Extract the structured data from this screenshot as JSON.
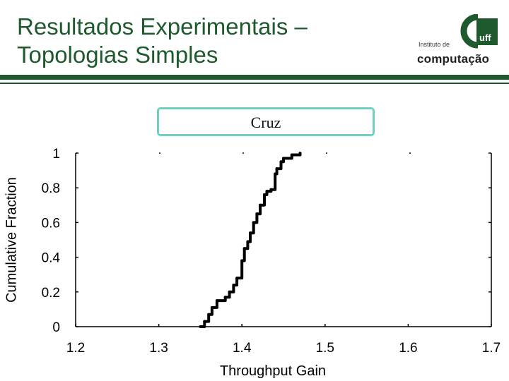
{
  "slide": {
    "title_line1": "Resultados Experimentais –",
    "title_line2": "Topologias Simples"
  },
  "logo": {
    "prefix": "Instituto de",
    "name": "computação",
    "mark": "uff"
  },
  "colors": {
    "title": "#1e5a2d",
    "box_border": "#6fcfc3",
    "curve": "#000000"
  },
  "chart_data": {
    "type": "line",
    "title": "Cruz",
    "xlabel": "Throughput Gain",
    "ylabel": "Cumulative Fraction",
    "xlim": [
      1.2,
      1.7
    ],
    "ylim": [
      0,
      1
    ],
    "xticks": [
      "1.2",
      "1.3",
      "1.4",
      "1.5",
      "1.6",
      "1.7"
    ],
    "yticks": [
      "0",
      "0.2",
      "0.4",
      "0.6",
      "0.8",
      "1"
    ],
    "grid": false,
    "series": [
      {
        "x": [
          1.35,
          1.355,
          1.36,
          1.364,
          1.37,
          1.38,
          1.385,
          1.39,
          1.394,
          1.4,
          1.403,
          1.407,
          1.41,
          1.414,
          1.418,
          1.422,
          1.427,
          1.43,
          1.435,
          1.44,
          1.442,
          1.447,
          1.45,
          1.46,
          1.47
        ],
        "y": [
          0.0,
          0.03,
          0.07,
          0.11,
          0.15,
          0.17,
          0.2,
          0.24,
          0.28,
          0.38,
          0.45,
          0.49,
          0.54,
          0.6,
          0.65,
          0.7,
          0.76,
          0.78,
          0.79,
          0.88,
          0.91,
          0.95,
          0.97,
          0.99,
          1.0
        ]
      }
    ]
  }
}
